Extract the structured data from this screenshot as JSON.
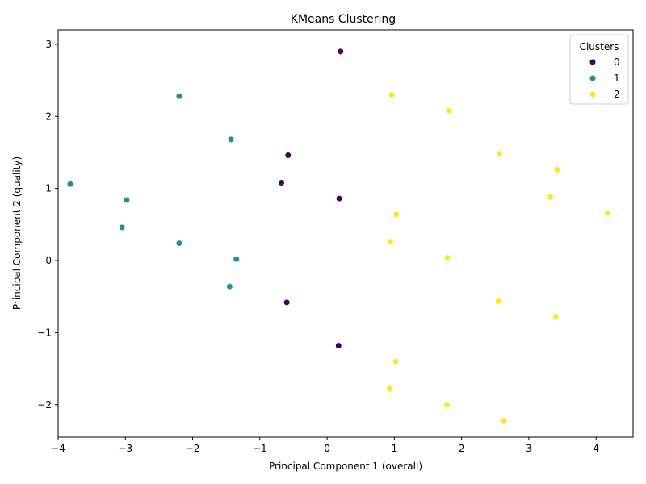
{
  "chart_data": {
    "type": "scatter",
    "title": "KMeans Clustering",
    "xlabel": "Principal Component 1 (overall)",
    "ylabel": "Principal Component 2 (quality)",
    "xlim": [
      -4.0,
      4.55
    ],
    "ylim": [
      -2.45,
      3.2
    ],
    "xticks": [
      -4,
      -3,
      -2,
      -1,
      0,
      1,
      2,
      3,
      4
    ],
    "yticks": [
      -2,
      -1,
      0,
      1,
      2,
      3
    ],
    "grid": false,
    "legend": {
      "title": "Clusters",
      "placement": "top-right"
    },
    "series": [
      {
        "name": "0",
        "color": "#440154",
        "points": [
          [
            0.2,
            2.9
          ],
          [
            -0.58,
            1.46
          ],
          [
            -0.68,
            1.08
          ],
          [
            0.18,
            0.86
          ],
          [
            -0.6,
            -0.58
          ],
          [
            0.17,
            -1.18
          ]
        ]
      },
      {
        "name": "1",
        "color": "#21918c",
        "points": [
          [
            -2.2,
            2.28
          ],
          [
            -1.43,
            1.68
          ],
          [
            -3.82,
            1.06
          ],
          [
            -2.98,
            0.84
          ],
          [
            -3.05,
            0.46
          ],
          [
            -2.2,
            0.24
          ],
          [
            -1.35,
            0.02
          ],
          [
            -1.45,
            -0.36
          ]
        ]
      },
      {
        "name": "2",
        "color": "#fde725",
        "points": [
          [
            0.96,
            2.3
          ],
          [
            1.81,
            2.08
          ],
          [
            2.56,
            1.48
          ],
          [
            3.42,
            1.26
          ],
          [
            3.32,
            0.88
          ],
          [
            1.03,
            0.64
          ],
          [
            4.17,
            0.66
          ],
          [
            0.94,
            0.26
          ],
          [
            1.79,
            0.04
          ],
          [
            2.55,
            -0.56
          ],
          [
            3.4,
            -0.78
          ],
          [
            1.02,
            -1.4
          ],
          [
            0.93,
            -1.78
          ],
          [
            1.78,
            -2.0
          ],
          [
            2.63,
            -2.22
          ]
        ]
      }
    ]
  }
}
